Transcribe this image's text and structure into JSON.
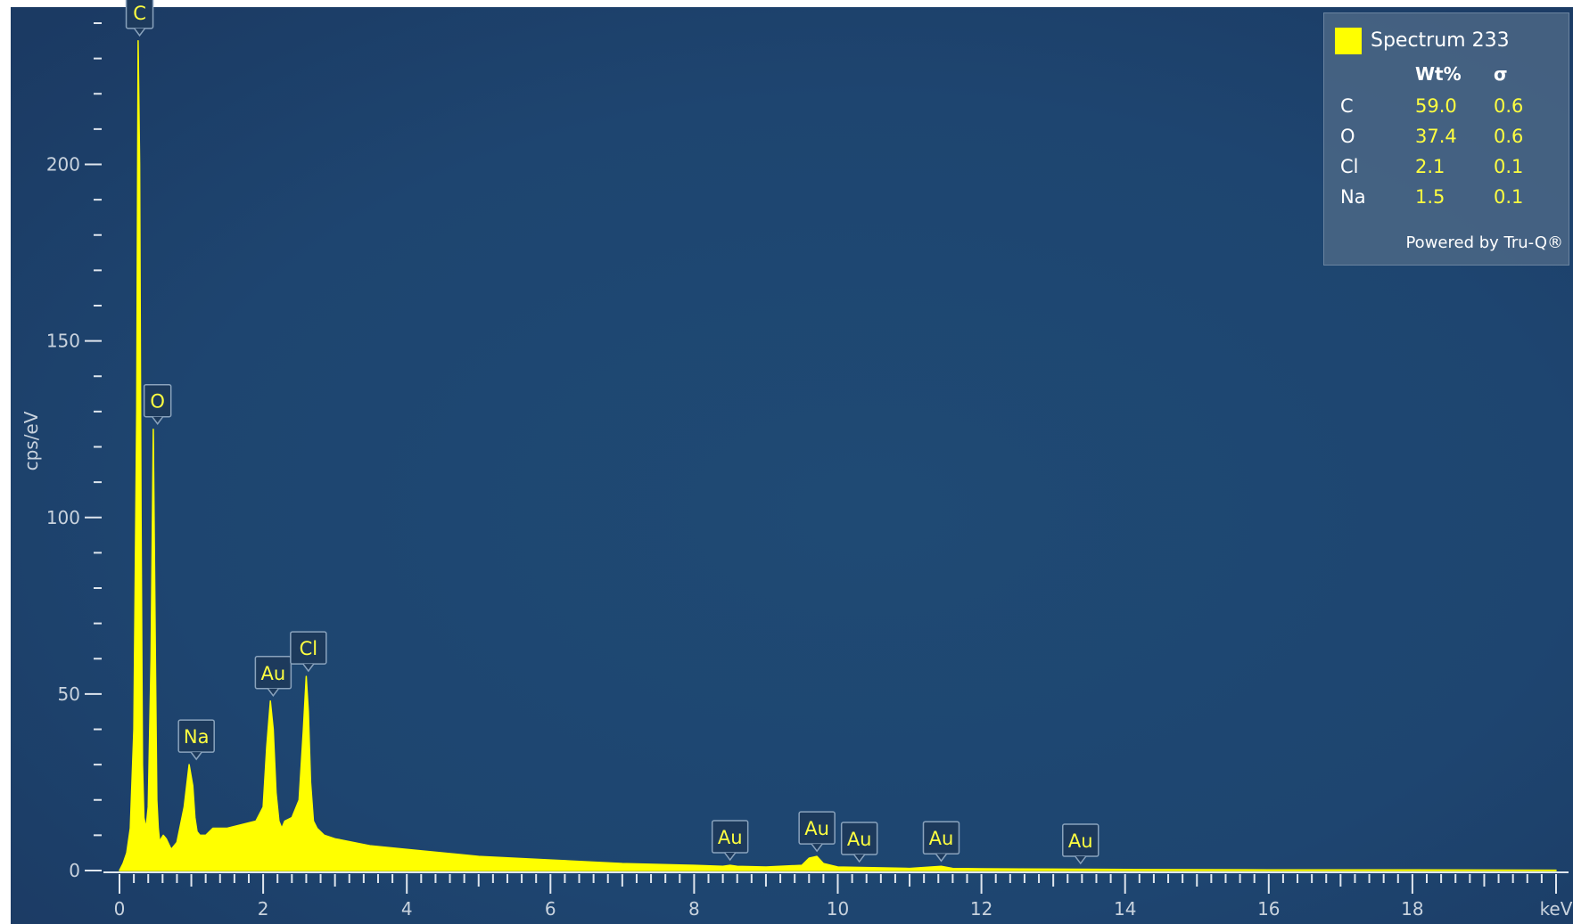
{
  "chart_data": {
    "type": "area",
    "xlabel": "keV",
    "ylabel": "cps/eV",
    "xlim": [
      0,
      20
    ],
    "ylim": [
      0,
      240
    ],
    "x_ticks": [
      0,
      2,
      4,
      6,
      8,
      10,
      12,
      14,
      16,
      18
    ],
    "y_ticks": [
      0,
      50,
      100,
      150,
      200
    ],
    "grid": false,
    "series": [
      {
        "name": "Spectrum 233",
        "color": "#ffff00",
        "x": [
          0.0,
          0.05,
          0.1,
          0.15,
          0.2,
          0.24,
          0.26,
          0.28,
          0.3,
          0.32,
          0.34,
          0.37,
          0.4,
          0.44,
          0.47,
          0.5,
          0.52,
          0.54,
          0.56,
          0.58,
          0.61,
          0.65,
          0.72,
          0.8,
          0.9,
          0.97,
          1.02,
          1.05,
          1.08,
          1.12,
          1.2,
          1.3,
          1.5,
          1.7,
          1.9,
          2.0,
          2.05,
          2.1,
          2.14,
          2.18,
          2.22,
          2.26,
          2.3,
          2.4,
          2.5,
          2.56,
          2.6,
          2.63,
          2.66,
          2.7,
          2.75,
          2.85,
          3.0,
          3.5,
          4.0,
          5.0,
          6.0,
          7.0,
          8.0,
          8.4,
          8.5,
          8.6,
          9.0,
          9.5,
          9.6,
          9.71,
          9.8,
          10.0,
          11.0,
          11.44,
          11.6,
          12.0,
          13.0,
          14.0,
          16.0,
          18.0,
          20.0
        ],
        "y": [
          0,
          2,
          5,
          12,
          40,
          130,
          235,
          200,
          100,
          30,
          15,
          12,
          18,
          60,
          125,
          60,
          20,
          12,
          8,
          9,
          10,
          9,
          6,
          8,
          18,
          30,
          24,
          15,
          11,
          10,
          10,
          12,
          12,
          13,
          14,
          18,
          35,
          48,
          40,
          22,
          14,
          12,
          14,
          15,
          20,
          40,
          55,
          45,
          25,
          14,
          12,
          10,
          9,
          7,
          6,
          4,
          3,
          2,
          1.5,
          1.2,
          1.5,
          1.2,
          1.0,
          1.5,
          3.5,
          4,
          2,
          1.0,
          0.6,
          1.2,
          0.6,
          0.5,
          0.4,
          0.3,
          0.2,
          0.2,
          0.1
        ]
      }
    ],
    "annotations": [
      {
        "label": "C",
        "x": 0.28,
        "y": 235
      },
      {
        "label": "O",
        "x": 0.53,
        "y": 125
      },
      {
        "label": "Na",
        "x": 1.07,
        "y": 30
      },
      {
        "label": "Au",
        "x": 2.14,
        "y": 48
      },
      {
        "label": "Cl",
        "x": 2.63,
        "y": 55
      },
      {
        "label": "Au",
        "x": 8.5,
        "y": 1.5
      },
      {
        "label": "Au",
        "x": 9.71,
        "y": 4
      },
      {
        "label": "Au",
        "x": 10.3,
        "y": 1
      },
      {
        "label": "Au",
        "x": 11.44,
        "y": 1.2
      },
      {
        "label": "Au",
        "x": 13.38,
        "y": 0.5
      }
    ]
  },
  "legend": {
    "title": "Spectrum 233",
    "swatch_color": "#ffff00",
    "col_headers": [
      "Wt%",
      "σ"
    ],
    "rows": [
      {
        "element": "C",
        "wt": "59.0",
        "sigma": "0.6"
      },
      {
        "element": "O",
        "wt": "37.4",
        "sigma": "0.6"
      },
      {
        "element": "Cl",
        "wt": "2.1",
        "sigma": "0.1"
      },
      {
        "element": "Na",
        "wt": "1.5",
        "sigma": "0.1"
      }
    ],
    "footer": "Powered by Tru-Q®"
  }
}
